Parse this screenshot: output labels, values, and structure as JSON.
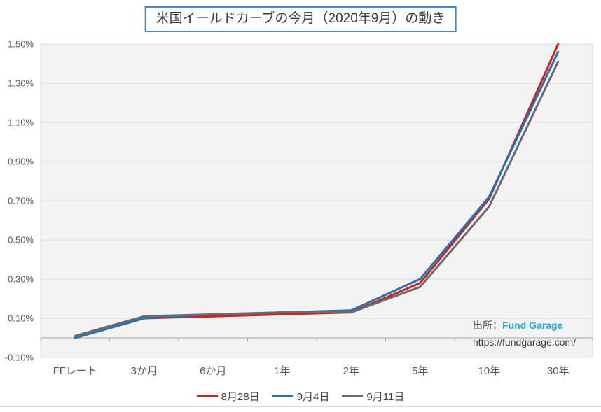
{
  "title": "米国イールドカーブの今月（2020年9月）の動き",
  "source": {
    "label": "出所：",
    "brand": "Fund Garage",
    "url": "https://fundgarage.com/"
  },
  "chart_data": {
    "type": "line",
    "title": "米国イールドカーブの今月（2020年9月）の動き",
    "categories": [
      "FFレート",
      "3か月",
      "6か月",
      "1年",
      "2年",
      "5年",
      "10年",
      "30年"
    ],
    "series": [
      {
        "name": "8月28日",
        "color": "#d2201f",
        "values": [
          0.0,
          0.1,
          0.11,
          0.12,
          0.13,
          0.28,
          0.71,
          1.5
        ]
      },
      {
        "name": "9月4日",
        "color": "#2272b4",
        "values": [
          0.0,
          0.1,
          0.12,
          0.13,
          0.14,
          0.3,
          0.72,
          1.46
        ]
      },
      {
        "name": "9月11日",
        "color": "#6b6b6b",
        "values": [
          0.01,
          0.11,
          0.12,
          0.13,
          0.13,
          0.26,
          0.67,
          1.41
        ]
      }
    ],
    "xlabel": "",
    "ylabel": "",
    "ylim": [
      -0.1,
      1.5
    ],
    "ystep": 0.2,
    "ytick_labels": [
      "1.50%",
      "1.30%",
      "1.10%",
      "0.90%",
      "0.70%",
      "0.50%",
      "0.30%",
      "0.10%",
      "-0.10%"
    ],
    "tick_format": "0.00%",
    "grid": true,
    "legend_position": "bottom",
    "accent_colors": {
      "title_border": "#4c86c2",
      "brand_text": "#29abd2",
      "plot_background": "#f3f3f3",
      "gridline": "#dcdcdc",
      "axis_line": "#a6a6a6",
      "tick_text": "#595959"
    }
  }
}
